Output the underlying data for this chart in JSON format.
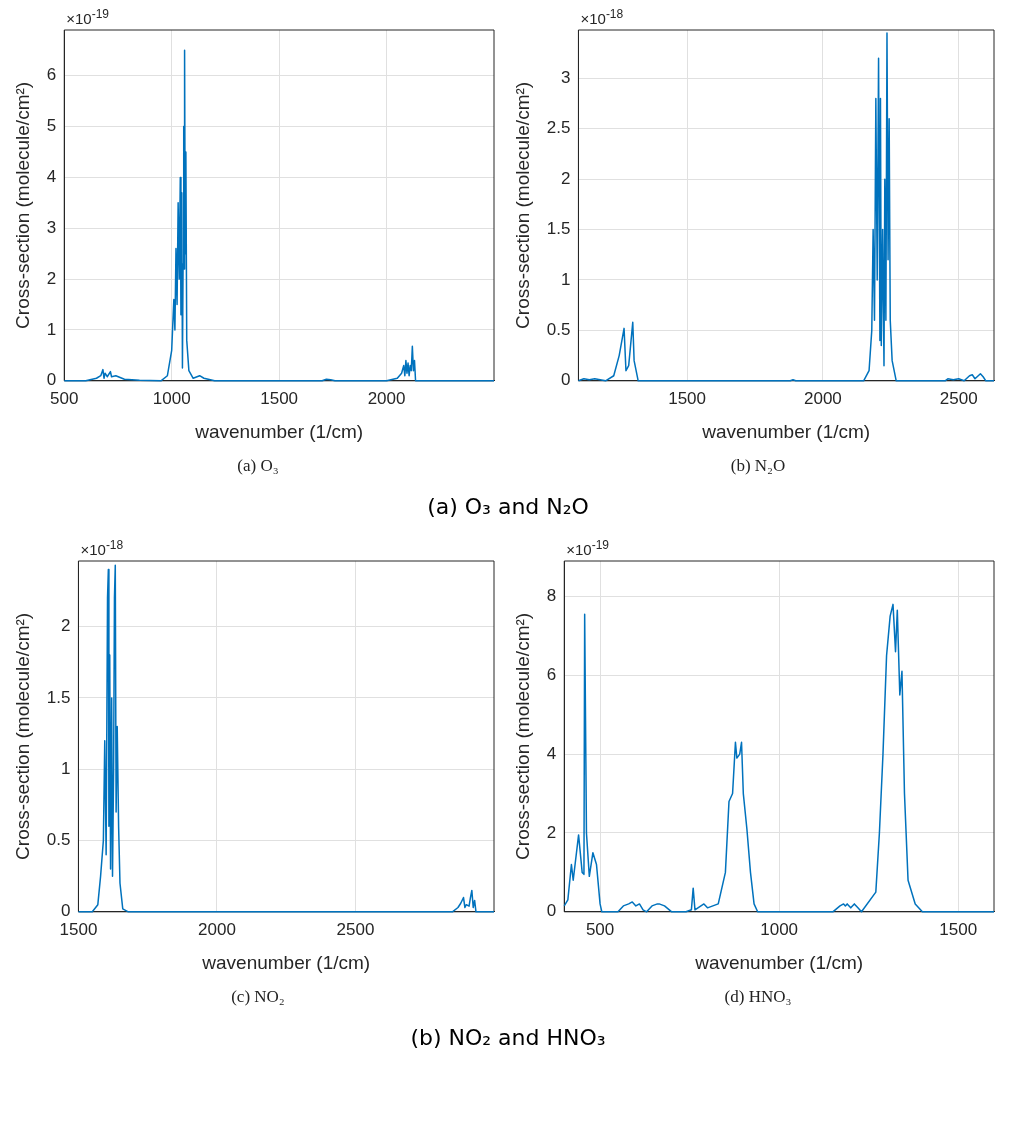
{
  "chart_data": [
    {
      "type": "line",
      "title": "(a) O₃",
      "xlabel": "wavenumber (1/cm)",
      "ylabel": "Cross-section (molecule/cm²)",
      "annotations": [
        "×10$^{-19}$",
        "(a) O₃ and N₂O"
      ],
      "xlim": [
        500,
        2500
      ],
      "xticks": [
        500,
        1000,
        1500,
        2000
      ],
      "ylim": [
        0,
        6.9
      ],
      "yticks": [
        0,
        1,
        2,
        3,
        4,
        5,
        6
      ],
      "grid": true,
      "legend": false,
      "marker": "none",
      "series": [
        {
          "color": "#0072bd",
          "x": [
            500,
            600,
            650,
            670,
            680,
            685,
            690,
            700,
            715,
            720,
            740,
            780,
            850,
            950,
            980,
            1000,
            1010,
            1015,
            1020,
            1025,
            1030,
            1035,
            1040,
            1043,
            1047,
            1050,
            1053,
            1056,
            1058,
            1060,
            1063,
            1066,
            1070,
            1080,
            1100,
            1130,
            1150,
            1200,
            1700,
            1720,
            1740,
            1760,
            2000,
            2050,
            2070,
            2080,
            2085,
            2090,
            2095,
            2100,
            2105,
            2110,
            2115,
            2120,
            2125,
            2130,
            2135,
            2500
          ],
          "values": [
            0,
            0,
            0.05,
            0.1,
            0.22,
            0.05,
            0.15,
            0.08,
            0.18,
            0.08,
            0.1,
            0.03,
            0.01,
            0,
            0.1,
            0.6,
            1.6,
            1.0,
            2.6,
            1.5,
            3.5,
            2.0,
            4.0,
            1.3,
            3.7,
            0.25,
            2.3,
            5.0,
            2.2,
            6.5,
            2.5,
            4.5,
            0.8,
            0.2,
            0.05,
            0.1,
            0.05,
            0,
            0,
            0.03,
            0.02,
            0,
            0,
            0.05,
            0.15,
            0.3,
            0.1,
            0.4,
            0.15,
            0.35,
            0.1,
            0.3,
            0.2,
            0.68,
            0.2,
            0.4,
            0,
            0
          ]
        }
      ]
    },
    {
      "type": "line",
      "title": "(b) N₂O",
      "xlabel": "wavenumber (1/cm)",
      "ylabel": "Cross-section (molecule/cm²)",
      "annotations": [
        "×10$^{-18}$"
      ],
      "xlim": [
        1100,
        2630
      ],
      "xticks": [
        1500,
        2000,
        2500
      ],
      "ylim": [
        0,
        3.48
      ],
      "yticks": [
        0,
        0.5,
        1,
        1.5,
        2,
        2.5,
        3
      ],
      "grid": true,
      "legend": false,
      "marker": "none",
      "series": [
        {
          "color": "#0072bd",
          "x": [
            1100,
            1120,
            1140,
            1160,
            1200,
            1230,
            1250,
            1268,
            1275,
            1285,
            1300,
            1305,
            1320,
            1880,
            1890,
            1900,
            2150,
            2170,
            2180,
            2185,
            2190,
            2195,
            2200,
            2205,
            2210,
            2212,
            2215,
            2220,
            2225,
            2228,
            2232,
            2236,
            2240,
            2244,
            2248,
            2255,
            2270,
            2450,
            2460,
            2480,
            2500,
            2520,
            2540,
            2550,
            2560,
            2580,
            2590,
            2600,
            2630
          ],
          "values": [
            0,
            0.02,
            0.01,
            0.02,
            0,
            0.05,
            0.25,
            0.52,
            0.1,
            0.15,
            0.58,
            0.2,
            0,
            0,
            0.01,
            0,
            0,
            0.1,
            0.5,
            1.5,
            0.6,
            2.8,
            1.0,
            3.2,
            0.4,
            2.8,
            0.35,
            1.5,
            0.15,
            2.0,
            0.6,
            3.45,
            1.2,
            2.6,
            0.6,
            0.2,
            0,
            0,
            0.02,
            0.01,
            0.02,
            0,
            0.05,
            0.06,
            0.02,
            0.07,
            0.04,
            0,
            0
          ]
        }
      ]
    },
    {
      "type": "line",
      "title": "(c) NO₂",
      "xlabel": "wavenumber (1/cm)",
      "ylabel": "Cross-section (molecule/cm²)",
      "annotations": [
        "×10$^{-18}$",
        "(b) NO₂ and HNO₃"
      ],
      "xlim": [
        1500,
        3000
      ],
      "xticks": [
        1500,
        2000,
        2500
      ],
      "ylim": [
        0,
        2.46
      ],
      "yticks": [
        0,
        0.5,
        1,
        1.5,
        2
      ],
      "grid": true,
      "legend": false,
      "marker": "none",
      "series": [
        {
          "color": "#0072bd",
          "x": [
            1500,
            1550,
            1570,
            1580,
            1590,
            1595,
            1600,
            1605,
            1608,
            1610,
            1613,
            1616,
            1620,
            1623,
            1627,
            1630,
            1633,
            1636,
            1640,
            1645,
            1650,
            1660,
            1680,
            2850,
            2870,
            2880,
            2890,
            2895,
            2900,
            2910,
            2915,
            2920,
            2925,
            2930,
            2935,
            3000
          ],
          "values": [
            0,
            0,
            0.05,
            0.25,
            0.5,
            1.2,
            0.4,
            2.2,
            2.4,
            0.6,
            1.8,
            0.3,
            1.5,
            0.25,
            1.0,
            2.2,
            2.43,
            0.7,
            1.3,
            0.6,
            0.2,
            0.02,
            0,
            0,
            0.03,
            0.06,
            0.1,
            0.03,
            0.05,
            0.04,
            0.1,
            0.15,
            0.03,
            0.08,
            0,
            0
          ]
        }
      ]
    },
    {
      "type": "line",
      "title": "(d) HNO₃",
      "xlabel": "wavenumber (1/cm)",
      "ylabel": "Cross-section (molecule/cm²)",
      "annotations": [
        "×10$^{-19}$"
      ],
      "xlim": [
        400,
        1600
      ],
      "xticks": [
        500,
        1000,
        1500
      ],
      "ylim": [
        0,
        8.9
      ],
      "yticks": [
        0,
        2,
        4,
        6,
        8
      ],
      "grid": true,
      "legend": false,
      "marker": "none",
      "series": [
        {
          "color": "#0072bd",
          "x": [
            400,
            410,
            420,
            425,
            440,
            450,
            455,
            457,
            462,
            470,
            480,
            490,
            500,
            505,
            550,
            565,
            580,
            590,
            600,
            610,
            620,
            630,
            645,
            660,
            665,
            680,
            700,
            740,
            755,
            760,
            765,
            790,
            800,
            830,
            850,
            860,
            870,
            878,
            882,
            890,
            895,
            900,
            910,
            920,
            930,
            940,
            1150,
            1170,
            1180,
            1185,
            1190,
            1200,
            1210,
            1220,
            1230,
            1270,
            1280,
            1290,
            1300,
            1310,
            1318,
            1325,
            1330,
            1337,
            1343,
            1350,
            1360,
            1380,
            1400,
            1600
          ],
          "values": [
            0.15,
            0.3,
            1.2,
            0.8,
            1.95,
            1.0,
            0.95,
            7.55,
            2.0,
            0.9,
            1.5,
            1.2,
            0.2,
            0,
            0,
            0.15,
            0.2,
            0.25,
            0.15,
            0.2,
            0.05,
            0,
            0.15,
            0.2,
            0.2,
            0.15,
            0,
            0,
            0.05,
            0.6,
            0.05,
            0.2,
            0.1,
            0.2,
            1.0,
            2.8,
            3.0,
            4.3,
            3.9,
            4.0,
            4.3,
            3.0,
            2.1,
            1.0,
            0.2,
            0,
            0,
            0.15,
            0.2,
            0.15,
            0.2,
            0.1,
            0.2,
            0.1,
            0,
            0.5,
            2.0,
            4.0,
            6.5,
            7.5,
            7.8,
            6.6,
            7.65,
            5.5,
            6.1,
            3.0,
            0.8,
            0.2,
            0,
            0
          ]
        }
      ]
    }
  ]
}
